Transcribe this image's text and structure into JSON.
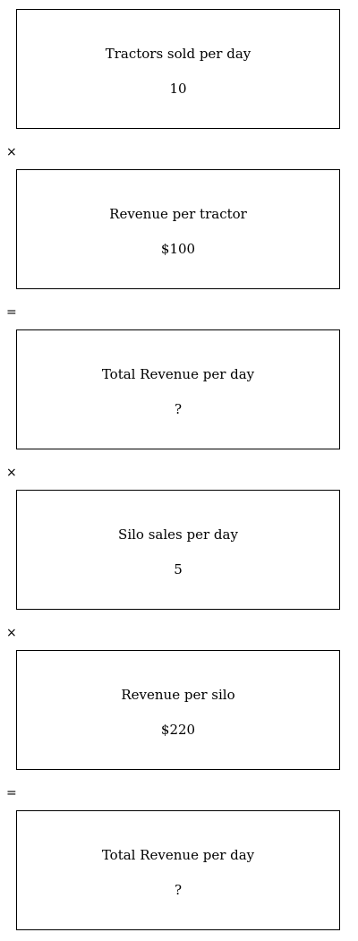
{
  "steps": [
    {
      "label": "Tractors sold per day",
      "value": "10"
    },
    {
      "operator": "×"
    },
    {
      "label": "Revenue per tractor",
      "value": "$100"
    },
    {
      "operator": "="
    },
    {
      "label": "Total Revenue per day",
      "value": "?"
    },
    {
      "operator": "×"
    },
    {
      "label": "Silo sales per day",
      "value": "5"
    },
    {
      "operator": "×"
    },
    {
      "label": "Revenue per silo",
      "value": "$220"
    },
    {
      "operator": "="
    },
    {
      "label": "Total Revenue per day",
      "value": "?"
    }
  ]
}
